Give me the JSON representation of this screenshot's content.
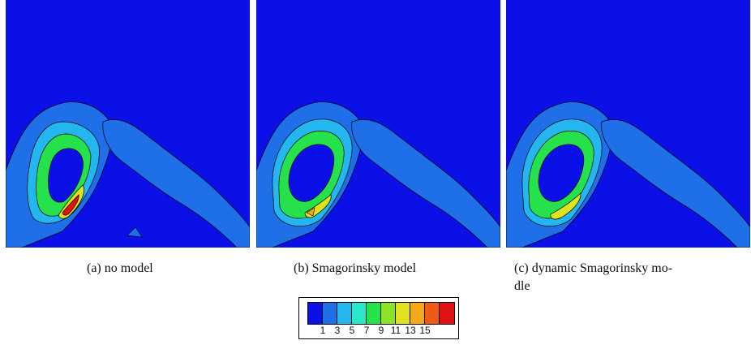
{
  "panels": [
    {
      "caption": "(a) no model"
    },
    {
      "caption": "(b) Smagorinsky model"
    },
    {
      "caption": "(c) dynamic Smagorinsky mo-",
      "caption_line2": "dle"
    }
  ],
  "legend": {
    "colors": [
      "#0a10e6",
      "#1f6fe8",
      "#24b6ee",
      "#27e9c9",
      "#25e14c",
      "#8ae425",
      "#e1e21e",
      "#f5a818",
      "#ef5a16",
      "#e11212"
    ],
    "ticks": [
      "1",
      "3",
      "5",
      "7",
      "9",
      "11",
      "13",
      "15"
    ]
  },
  "colors": {
    "background_field": "#0a10e6",
    "contour_line": "#000000"
  }
}
